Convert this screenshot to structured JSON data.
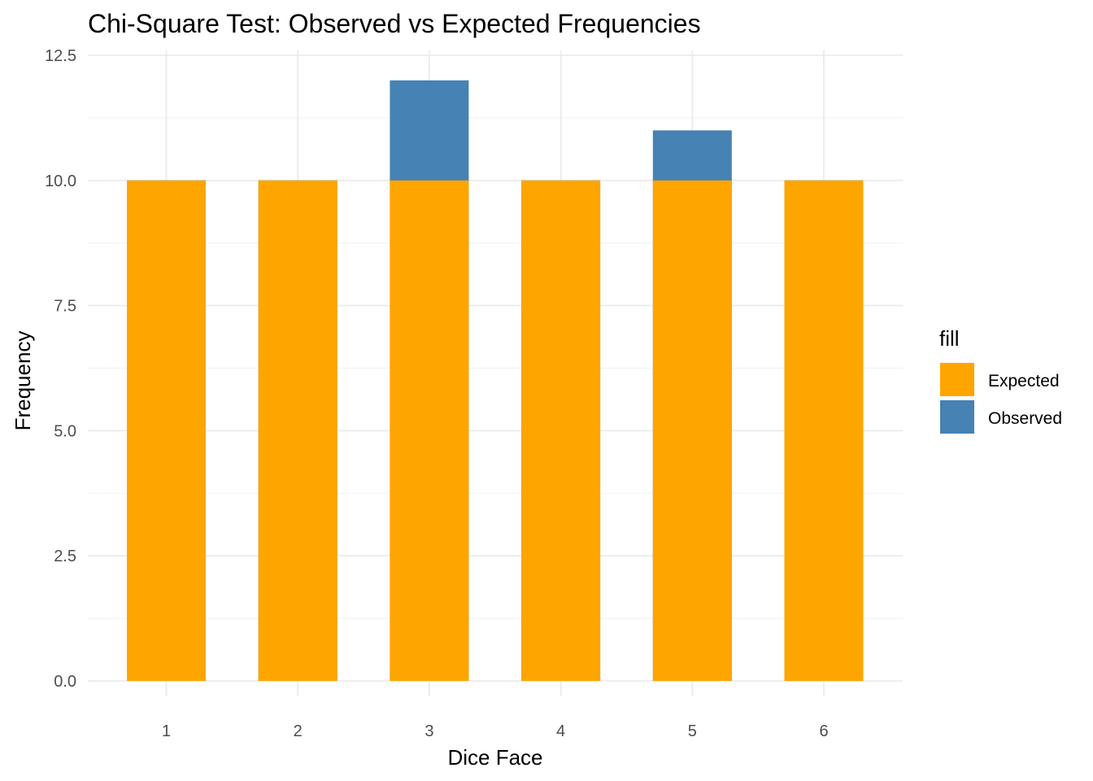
{
  "chart_data": {
    "type": "bar",
    "title": "Chi-Square Test: Observed vs Expected Frequencies",
    "xlabel": "Dice Face",
    "ylabel": "Frequency",
    "categories": [
      "1",
      "2",
      "3",
      "4",
      "5",
      "6"
    ],
    "series": [
      {
        "name": "Observed",
        "values": [
          10,
          10,
          12,
          10,
          11,
          10
        ],
        "color": "#4682b4"
      },
      {
        "name": "Expected",
        "values": [
          10,
          10,
          10,
          10,
          10,
          10
        ],
        "color": "#ffa500"
      }
    ],
    "draw_order": [
      "Observed",
      "Expected"
    ],
    "ylim": [
      0,
      12.5
    ],
    "yticks": [
      "0.0",
      "2.5",
      "5.0",
      "7.5",
      "10.0",
      "12.5"
    ],
    "ytick_values": [
      0,
      2.5,
      5,
      7.5,
      10,
      12.5
    ],
    "grid": true,
    "legend": {
      "title": "fill",
      "position": "right",
      "entries": [
        {
          "label": "Expected",
          "color": "#ffa500"
        },
        {
          "label": "Observed",
          "color": "#4682b4"
        }
      ]
    }
  }
}
